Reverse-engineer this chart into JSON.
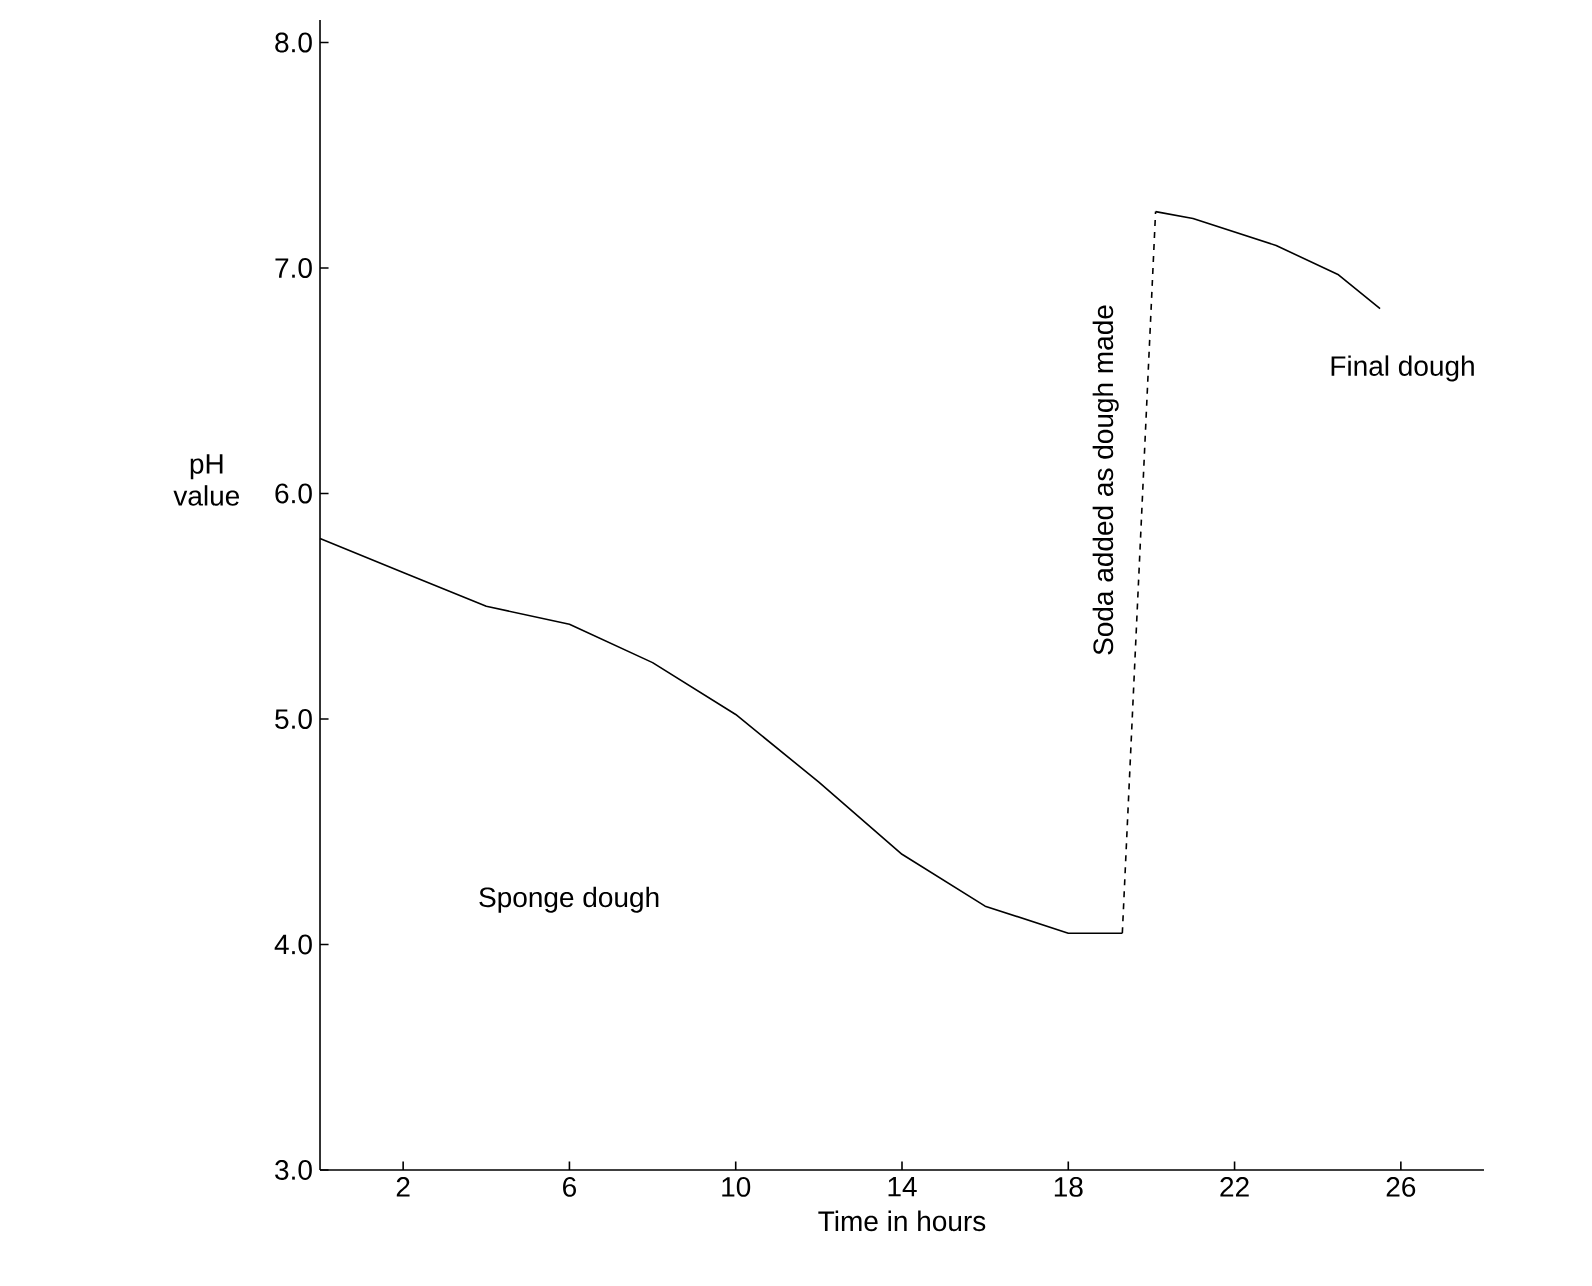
{
  "chart_data": {
    "type": "line",
    "xlabel": "Time in hours",
    "ylabel": "pH\nvalue",
    "xlim": [
      0,
      28
    ],
    "ylim": [
      3,
      8.1
    ],
    "xticks": [
      2,
      6,
      10,
      14,
      18,
      22,
      26
    ],
    "yticks": [
      {
        "value": 3,
        "label": "3.0"
      },
      {
        "value": 4,
        "label": "4.0"
      },
      {
        "value": 5,
        "label": "5.0"
      },
      {
        "value": 6,
        "label": "6.0"
      },
      {
        "value": 7,
        "label": "7.0"
      },
      {
        "value": 8,
        "label": "8.0"
      }
    ],
    "series": [
      {
        "color": "#000000",
        "line_style": "solid",
        "x": [
          0,
          2,
          4,
          6,
          8,
          10,
          12,
          14,
          16,
          18,
          19.3
        ],
        "values": [
          5.8,
          5.65,
          5.5,
          5.42,
          5.25,
          5.02,
          4.72,
          4.4,
          4.17,
          4.05,
          4.05
        ]
      },
      {
        "color": "#000000",
        "line_style": "dashed",
        "x": [
          19.3,
          20.1
        ],
        "values": [
          4.05,
          7.25
        ]
      },
      {
        "color": "#000000",
        "line_style": "solid",
        "x": [
          20.1,
          21,
          23,
          24.5,
          25.5
        ],
        "values": [
          7.25,
          7.22,
          7.1,
          6.97,
          6.82
        ]
      }
    ],
    "annotations": [
      "Sponge dough",
      "Soda added as dough made",
      "Final dough"
    ]
  }
}
